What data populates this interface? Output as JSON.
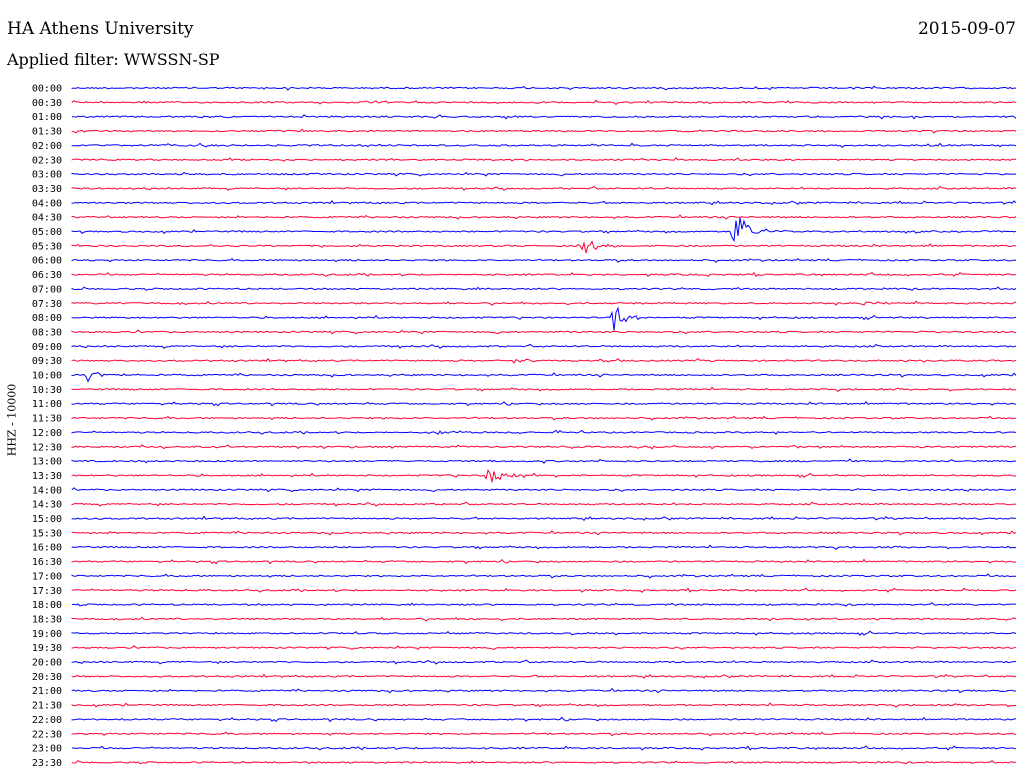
{
  "header": {
    "station": "HA Athens University",
    "date": "2015-09-07",
    "filter": "Applied filter: WWSSN-SP"
  },
  "chart_data": {
    "type": "line",
    "ylabel": "HHZ - 10000",
    "colors": {
      "even": "#0000ff",
      "odd": "#ff0033"
    },
    "rows": [
      "00:00",
      "00:30",
      "01:00",
      "01:30",
      "02:00",
      "02:30",
      "03:00",
      "03:30",
      "04:00",
      "04:30",
      "05:00",
      "05:30",
      "06:00",
      "06:30",
      "07:00",
      "07:30",
      "08:00",
      "08:30",
      "09:00",
      "09:30",
      "10:00",
      "10:30",
      "11:00",
      "11:30",
      "12:00",
      "12:30",
      "13:00",
      "13:30",
      "14:00",
      "14:30",
      "15:00",
      "15:30",
      "16:00",
      "16:30",
      "17:00",
      "17:30",
      "18:00",
      "18:30",
      "19:00",
      "19:30",
      "20:00",
      "20:30",
      "21:00",
      "21:30",
      "22:00",
      "22:30",
      "23:00",
      "23:30"
    ],
    "events": [
      {
        "row": "05:00",
        "minute": 21.0,
        "amp": 28
      },
      {
        "row": "05:30",
        "minute": 16.2,
        "amp": 11
      },
      {
        "row": "08:00",
        "minute": 17.2,
        "amp": 14
      },
      {
        "row": "10:00",
        "minute": 0.5,
        "amp": 8
      },
      {
        "row": "13:30",
        "minute": 13.2,
        "amp": 10
      },
      {
        "row": "07:30",
        "minute": 25.0,
        "amp": 4
      },
      {
        "row": "09:30",
        "minute": 14.0,
        "amp": 3
      },
      {
        "row": "12:00",
        "minute": 11.5,
        "amp": 3
      }
    ]
  }
}
